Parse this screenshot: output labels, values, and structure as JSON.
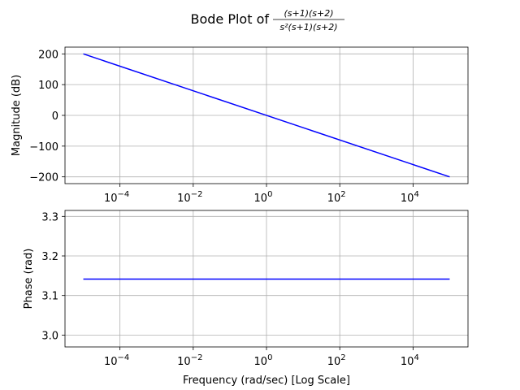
{
  "figure": {
    "title_prefix": "Bode Plot of",
    "title_numerator": "(s+1)(s+2)",
    "title_denominator": "s²(s+1)(s+2)"
  },
  "chart_data": [
    {
      "type": "line",
      "id": "magnitude",
      "ylabel": "Magnitude (dB)",
      "xlabel": "",
      "xscale": "log",
      "xlim_exp": [
        -5.5,
        5.5
      ],
      "ylim": [
        -222,
        222
      ],
      "xticks": [
        {
          "base": "10",
          "exp": "−4",
          "value_exp": -4
        },
        {
          "base": "10",
          "exp": "−2",
          "value_exp": -2
        },
        {
          "base": "10",
          "exp": "0",
          "value_exp": 0
        },
        {
          "base": "10",
          "exp": "2",
          "value_exp": 2
        },
        {
          "base": "10",
          "exp": "4",
          "value_exp": 4
        }
      ],
      "yticks": [
        {
          "label": "200",
          "value": 200
        },
        {
          "label": "100",
          "value": 100
        },
        {
          "label": "0",
          "value": 0
        },
        {
          "label": "−100",
          "value": -100
        },
        {
          "label": "−200",
          "value": -200
        }
      ],
      "grid": true,
      "series": [
        {
          "color": "#0000ff",
          "x": [
            1e-05,
            100000
          ],
          "y": [
            200,
            -200
          ]
        }
      ]
    },
    {
      "type": "line",
      "id": "phase",
      "ylabel": "Phase (rad)",
      "xlabel": "Frequency (rad/sec) [Log Scale]",
      "xscale": "log",
      "xlim_exp": [
        -5.5,
        5.5
      ],
      "ylim": [
        2.97,
        3.315
      ],
      "xticks": [
        {
          "base": "10",
          "exp": "−4",
          "value_exp": -4
        },
        {
          "base": "10",
          "exp": "−2",
          "value_exp": -2
        },
        {
          "base": "10",
          "exp": "0",
          "value_exp": 0
        },
        {
          "base": "10",
          "exp": "2",
          "value_exp": 2
        },
        {
          "base": "10",
          "exp": "4",
          "value_exp": 4
        }
      ],
      "yticks": [
        {
          "label": "3.3",
          "value": 3.3
        },
        {
          "label": "3.2",
          "value": 3.2
        },
        {
          "label": "3.1",
          "value": 3.1
        },
        {
          "label": "3.0",
          "value": 3.0
        }
      ],
      "grid": true,
      "series": [
        {
          "color": "#0000ff",
          "x": [
            1e-05,
            100000
          ],
          "y": [
            3.14159,
            3.14159
          ]
        }
      ]
    }
  ]
}
